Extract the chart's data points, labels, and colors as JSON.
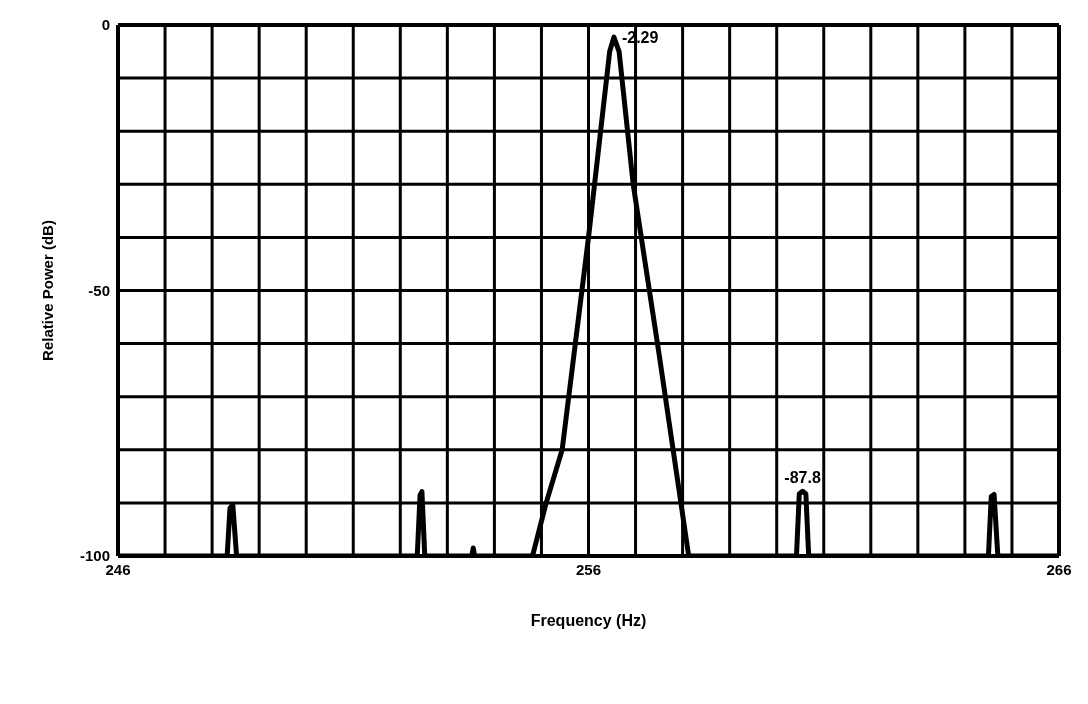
{
  "chart_data": {
    "type": "line",
    "xlabel": "Frequency (Hz)",
    "ylabel": "Relative Power (dB)",
    "series": [
      {
        "color": "#000000",
        "x": [
          246,
          248.32,
          248.38,
          248.44,
          248.52,
          252.36,
          252.42,
          252.46,
          252.52,
          253.52,
          253.55,
          253.58,
          254.81,
          255.1,
          255.44,
          256.0,
          256.45,
          256.54,
          256.65,
          256.95,
          257.5,
          258.13,
          260.42,
          260.48,
          260.55,
          260.62,
          260.68,
          264.5,
          264.56,
          264.62,
          264.7,
          266
        ],
        "values": [
          -100,
          -100,
          -91,
          -90.4,
          -100,
          -100,
          -88.5,
          -87.9,
          -100,
          -100,
          -98.5,
          -100,
          -100,
          -90,
          -80,
          -40,
          -5,
          -2.29,
          -5,
          -30,
          -62,
          -100,
          -100,
          -88.3,
          -87.8,
          -88.3,
          -100,
          -100,
          -88.8,
          -88.4,
          -100,
          -100
        ]
      }
    ],
    "xlim": [
      246,
      266
    ],
    "xticks": [
      246,
      {
        "value": 247,
        "label": null
      },
      {
        "value": 248,
        "label": null
      },
      {
        "value": 249,
        "label": null
      },
      {
        "value": 250,
        "label": null
      },
      {
        "value": 251,
        "label": null
      },
      {
        "value": 252,
        "label": null
      },
      {
        "value": 253,
        "label": null
      },
      {
        "value": 254,
        "label": null
      },
      {
        "value": 255,
        "label": null
      },
      256,
      {
        "value": 257,
        "label": null
      },
      {
        "value": 258,
        "label": null
      },
      {
        "value": 259,
        "label": null
      },
      {
        "value": 260,
        "label": null
      },
      {
        "value": 261,
        "label": null
      },
      {
        "value": 262,
        "label": null
      },
      {
        "value": 263,
        "label": null
      },
      {
        "value": 264,
        "label": null
      },
      {
        "value": 265,
        "label": null
      },
      266
    ],
    "ylim": [
      -100,
      0
    ],
    "yticks": [
      -100,
      {
        "value": -90,
        "label": null
      },
      {
        "value": -80,
        "label": null
      },
      {
        "value": -70,
        "label": null
      },
      {
        "value": -60,
        "label": null
      },
      -50,
      {
        "value": -40,
        "label": null
      },
      {
        "value": -30,
        "label": null
      },
      {
        "value": -20,
        "label": null
      },
      {
        "value": -10,
        "label": null
      },
      0
    ],
    "grid": true,
    "marker": "none",
    "line_style": "solid",
    "annotations": [
      {
        "text": "-2.29",
        "x": 256.54,
        "y": -2.29
      },
      {
        "text": "-87.8",
        "x": 260.55,
        "y": -87.8
      }
    ]
  }
}
